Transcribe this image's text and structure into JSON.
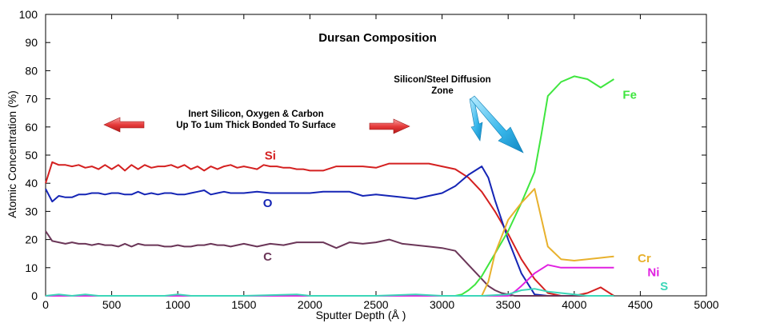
{
  "chart_data": {
    "type": "line",
    "title": "Dursan Composition",
    "xlabel": "Sputter Depth (Å )",
    "ylabel": "Atomic Concentration (%)",
    "xlim": [
      0,
      5000
    ],
    "ylim": [
      0,
      100
    ],
    "x_ticks": [
      0,
      500,
      1000,
      1500,
      2000,
      2500,
      3000,
      3500,
      4000,
      4500,
      5000
    ],
    "y_ticks": [
      0,
      10,
      20,
      30,
      40,
      50,
      60,
      70,
      80,
      90,
      100
    ],
    "grid": false,
    "series": [
      {
        "name": "Si",
        "color": "#d42020",
        "x": [
          0,
          50,
          100,
          150,
          200,
          250,
          300,
          350,
          400,
          450,
          500,
          550,
          600,
          650,
          700,
          750,
          800,
          850,
          900,
          950,
          1000,
          1050,
          1100,
          1150,
          1200,
          1250,
          1300,
          1350,
          1400,
          1450,
          1500,
          1550,
          1600,
          1650,
          1700,
          1750,
          1800,
          1850,
          1900,
          1950,
          2000,
          2100,
          2200,
          2300,
          2400,
          2500,
          2600,
          2700,
          2800,
          2900,
          3000,
          3100,
          3200,
          3300,
          3400,
          3500,
          3600,
          3700,
          3800,
          3900,
          4000,
          4100,
          4200,
          4300
        ],
        "y": [
          40,
          47.5,
          46.5,
          46.5,
          46,
          46.5,
          45.5,
          46,
          45,
          46.5,
          45,
          46.5,
          44.5,
          46.5,
          45,
          46.5,
          45.5,
          46,
          46,
          46.5,
          45.5,
          46.5,
          45,
          46,
          44.5,
          46,
          45,
          46,
          46.5,
          45.5,
          46,
          45.5,
          45,
          46.5,
          46,
          46,
          45.5,
          45.5,
          45,
          45,
          44.5,
          44.5,
          46,
          46,
          46,
          45.5,
          47,
          47,
          47,
          47,
          46,
          45,
          42,
          37,
          30,
          22,
          13,
          6,
          1,
          0,
          0,
          1,
          3,
          0
        ]
      },
      {
        "name": "O",
        "color": "#1525b5",
        "x": [
          0,
          50,
          100,
          150,
          200,
          250,
          300,
          350,
          400,
          450,
          500,
          550,
          600,
          650,
          700,
          750,
          800,
          850,
          900,
          950,
          1000,
          1050,
          1100,
          1150,
          1200,
          1250,
          1300,
          1350,
          1400,
          1450,
          1500,
          1600,
          1700,
          1800,
          1900,
          2000,
          2100,
          2200,
          2300,
          2400,
          2500,
          2600,
          2700,
          2800,
          2900,
          3000,
          3100,
          3200,
          3300,
          3350,
          3400,
          3500,
          3600,
          3700,
          3800,
          3900,
          4000,
          4100,
          4200,
          4300
        ],
        "y": [
          38,
          33.5,
          35.5,
          35,
          35,
          36,
          36,
          36.5,
          36.5,
          36,
          36.5,
          36.5,
          36,
          36,
          37,
          36,
          36.5,
          36,
          36.5,
          36.5,
          36,
          36,
          36.5,
          37,
          37.5,
          36,
          36.5,
          37,
          36.5,
          36.5,
          36.5,
          37,
          36.5,
          36.5,
          36.5,
          36.5,
          37,
          37,
          37,
          35.5,
          36,
          35.5,
          35,
          34.5,
          35.5,
          36.5,
          39,
          43,
          46,
          42,
          34,
          20,
          8,
          0.5,
          0,
          0,
          0,
          0,
          0,
          0
        ]
      },
      {
        "name": "C",
        "color": "#6b3658",
        "x": [
          0,
          50,
          100,
          150,
          200,
          250,
          300,
          350,
          400,
          450,
          500,
          550,
          600,
          650,
          700,
          750,
          800,
          850,
          900,
          950,
          1000,
          1050,
          1100,
          1150,
          1200,
          1250,
          1300,
          1350,
          1400,
          1450,
          1500,
          1600,
          1700,
          1800,
          1900,
          2000,
          2100,
          2200,
          2300,
          2400,
          2500,
          2600,
          2700,
          2800,
          2900,
          3000,
          3100,
          3200,
          3300,
          3350,
          3400,
          3450,
          3500,
          3550,
          3600,
          3700,
          3800,
          3900,
          4000,
          4100,
          4200,
          4300
        ],
        "y": [
          23,
          19.5,
          19,
          18.5,
          19,
          18.5,
          18.5,
          18,
          18.5,
          18,
          18,
          17.5,
          18.5,
          17.5,
          18.5,
          18,
          18,
          18,
          17.5,
          17.5,
          18,
          17.5,
          17.5,
          18,
          18,
          18.5,
          18,
          18,
          17.5,
          18,
          18.5,
          17.5,
          18.5,
          18,
          19,
          19,
          19,
          17,
          19,
          18.5,
          19,
          20,
          18.5,
          18,
          17.5,
          17,
          16,
          11,
          6,
          3.5,
          2,
          1,
          0.5,
          0,
          0,
          0,
          0,
          0,
          0,
          0,
          0,
          0
        ]
      },
      {
        "name": "Fe",
        "color": "#3fe63f",
        "x": [
          0,
          3100,
          3150,
          3200,
          3250,
          3300,
          3400,
          3500,
          3600,
          3700,
          3750,
          3800,
          3900,
          4000,
          4100,
          4200,
          4300
        ],
        "y": [
          0,
          0,
          0.5,
          2,
          4,
          7,
          15,
          23,
          33,
          44,
          57,
          71,
          76,
          78,
          77,
          74,
          77
        ]
      },
      {
        "name": "Cr",
        "color": "#e8b12d",
        "x": [
          0,
          3300,
          3350,
          3400,
          3500,
          3600,
          3700,
          3800,
          3900,
          4000,
          4100,
          4200,
          4300
        ],
        "y": [
          0,
          0,
          5,
          15,
          27,
          33,
          38,
          17.5,
          13,
          12.5,
          13,
          13.5,
          14
        ]
      },
      {
        "name": "Ni",
        "color": "#e020e0",
        "x": [
          0,
          3500,
          3550,
          3600,
          3700,
          3800,
          3900,
          4000,
          4100,
          4200,
          4300
        ],
        "y": [
          0,
          0,
          1.5,
          3.5,
          8,
          11,
          10,
          10,
          10,
          10,
          10
        ]
      },
      {
        "name": "S",
        "color": "#3cd6b8",
        "x": [
          0,
          100,
          200,
          300,
          400,
          500,
          600,
          700,
          800,
          900,
          1000,
          1100,
          1200,
          1500,
          1900,
          2000,
          2500,
          2800,
          3000,
          3300,
          3500,
          3600,
          3700,
          3800,
          3900,
          4000,
          4100,
          4200,
          4300
        ],
        "y": [
          0,
          0.5,
          0,
          0.5,
          0,
          0,
          0,
          0,
          0,
          0,
          0.5,
          0,
          0,
          0,
          0.5,
          0,
          0,
          0.5,
          0,
          0,
          0.5,
          2,
          2.5,
          1.5,
          1,
          0.5,
          0,
          0,
          0
        ]
      }
    ],
    "series_label_positions_data": [
      {
        "name": "Si",
        "x": 1700,
        "y": 48.5
      },
      {
        "name": "O",
        "x": 1680,
        "y": 31.5
      },
      {
        "name": "C",
        "x": 1680,
        "y": 12.5
      },
      {
        "name": "Fe",
        "x": 4420,
        "y": 70
      },
      {
        "name": "Cr",
        "x": 4530,
        "y": 12
      },
      {
        "name": "Ni",
        "x": 4600,
        "y": 7
      },
      {
        "name": "S",
        "x": 4680,
        "y": 2
      }
    ],
    "annotations": [
      {
        "name": "inert-layer-note",
        "lines": [
          "Inert Silicon, Oxygen & Carbon",
          "Up To 1um Thick Bonded To Surface"
        ]
      },
      {
        "name": "diffusion-zone-note",
        "lines": [
          "Silicon/Steel Diffusion",
          "Zone"
        ]
      }
    ]
  }
}
